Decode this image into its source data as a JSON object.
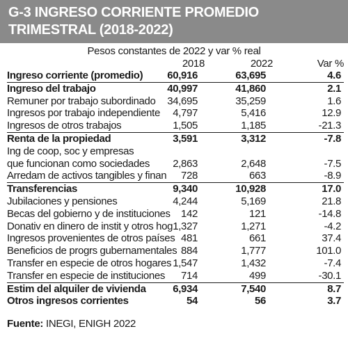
{
  "title": "G-3 INGRESO CORRIENTE PROMEDIO TRIMESTRAL (2018-2022)",
  "subtitle": "Pesos constantes de 2022 y var % real",
  "columns": [
    "2018",
    "2022",
    "Var %"
  ],
  "rows": [
    {
      "label": "Ingreso corriente (promedio)",
      "v2018": "60,916",
      "v2022": "63,695",
      "var": "4.6",
      "bold": true,
      "sep": false
    },
    {
      "label": "Ingreso del trabajo",
      "v2018": "40,997",
      "v2022": "41,860",
      "var": "2.1",
      "bold": true,
      "sep": true
    },
    {
      "label": "Remuner por trabajo subordinado",
      "v2018": "34,695",
      "v2022": "35,259",
      "var": "1.6",
      "bold": false,
      "sep": false
    },
    {
      "label": "Ingresos por trabajo independiente",
      "v2018": "4,797",
      "v2022": "5,416",
      "var": "12.9",
      "bold": false,
      "sep": false
    },
    {
      "label": "Ingresos de otros trabajos",
      "v2018": "1,505",
      "v2022": "1,185",
      "var": "-21.3",
      "bold": false,
      "sep": false
    },
    {
      "label": "Renta de la propiedad",
      "v2018": "3,591",
      "v2022": "3,312",
      "var": "-7.8",
      "bold": true,
      "sep": true
    },
    {
      "label": "Ing de coop, soc y empresas",
      "v2018": "",
      "v2022": "",
      "var": "",
      "bold": false,
      "sep": false
    },
    {
      "label": "que funcionan como sociedades",
      "v2018": "2,863",
      "v2022": "2,648",
      "var": "-7.5",
      "bold": false,
      "sep": false
    },
    {
      "label": "Arredam de activos tangibles y finan",
      "v2018": "728",
      "v2022": "663",
      "var": "-8.9",
      "bold": false,
      "sep": false
    },
    {
      "label": "Transferencias",
      "v2018": "9,340",
      "v2022": "10,928",
      "var": "17.0",
      "bold": true,
      "sep": true
    },
    {
      "label": "Jubilaciones y pensiones",
      "v2018": "4,244",
      "v2022": "5,169",
      "var": "21.8",
      "bold": false,
      "sep": false
    },
    {
      "label": "Becas del gobierno y de instituciones",
      "v2018": "142",
      "v2022": "121",
      "var": "-14.8",
      "bold": false,
      "sep": false
    },
    {
      "label": "Donativ en dinero de instit y otros hog",
      "v2018": "1,327",
      "v2022": "1,271",
      "var": "-4.2",
      "bold": false,
      "sep": false
    },
    {
      "label": "Ingresos provenientes de otros países",
      "v2018": "481",
      "v2022": "661",
      "var": "37.4",
      "bold": false,
      "sep": false
    },
    {
      "label": "Beneficios de progrs gubernamentales",
      "v2018": "884",
      "v2022": "1,777",
      "var": "101.0",
      "bold": false,
      "sep": false
    },
    {
      "label": "Transfer en especie de otros hogares",
      "v2018": "1,547",
      "v2022": "1,432",
      "var": "-7.4",
      "bold": false,
      "sep": false
    },
    {
      "label": "Transfer en especie de instituciones",
      "v2018": "714",
      "v2022": "499",
      "var": "-30.1",
      "bold": false,
      "sep": false
    },
    {
      "label": "Estim del alquiler de vivienda",
      "v2018": "6,934",
      "v2022": "7,540",
      "var": "8.7",
      "bold": true,
      "sep": true
    },
    {
      "label": "Otros ingresos corrientes",
      "v2018": "54",
      "v2022": "56",
      "var": "3.7",
      "bold": true,
      "sep": false
    }
  ],
  "source": {
    "label": "Fuente:",
    "text": "INEGI, ENIGH 2022"
  }
}
